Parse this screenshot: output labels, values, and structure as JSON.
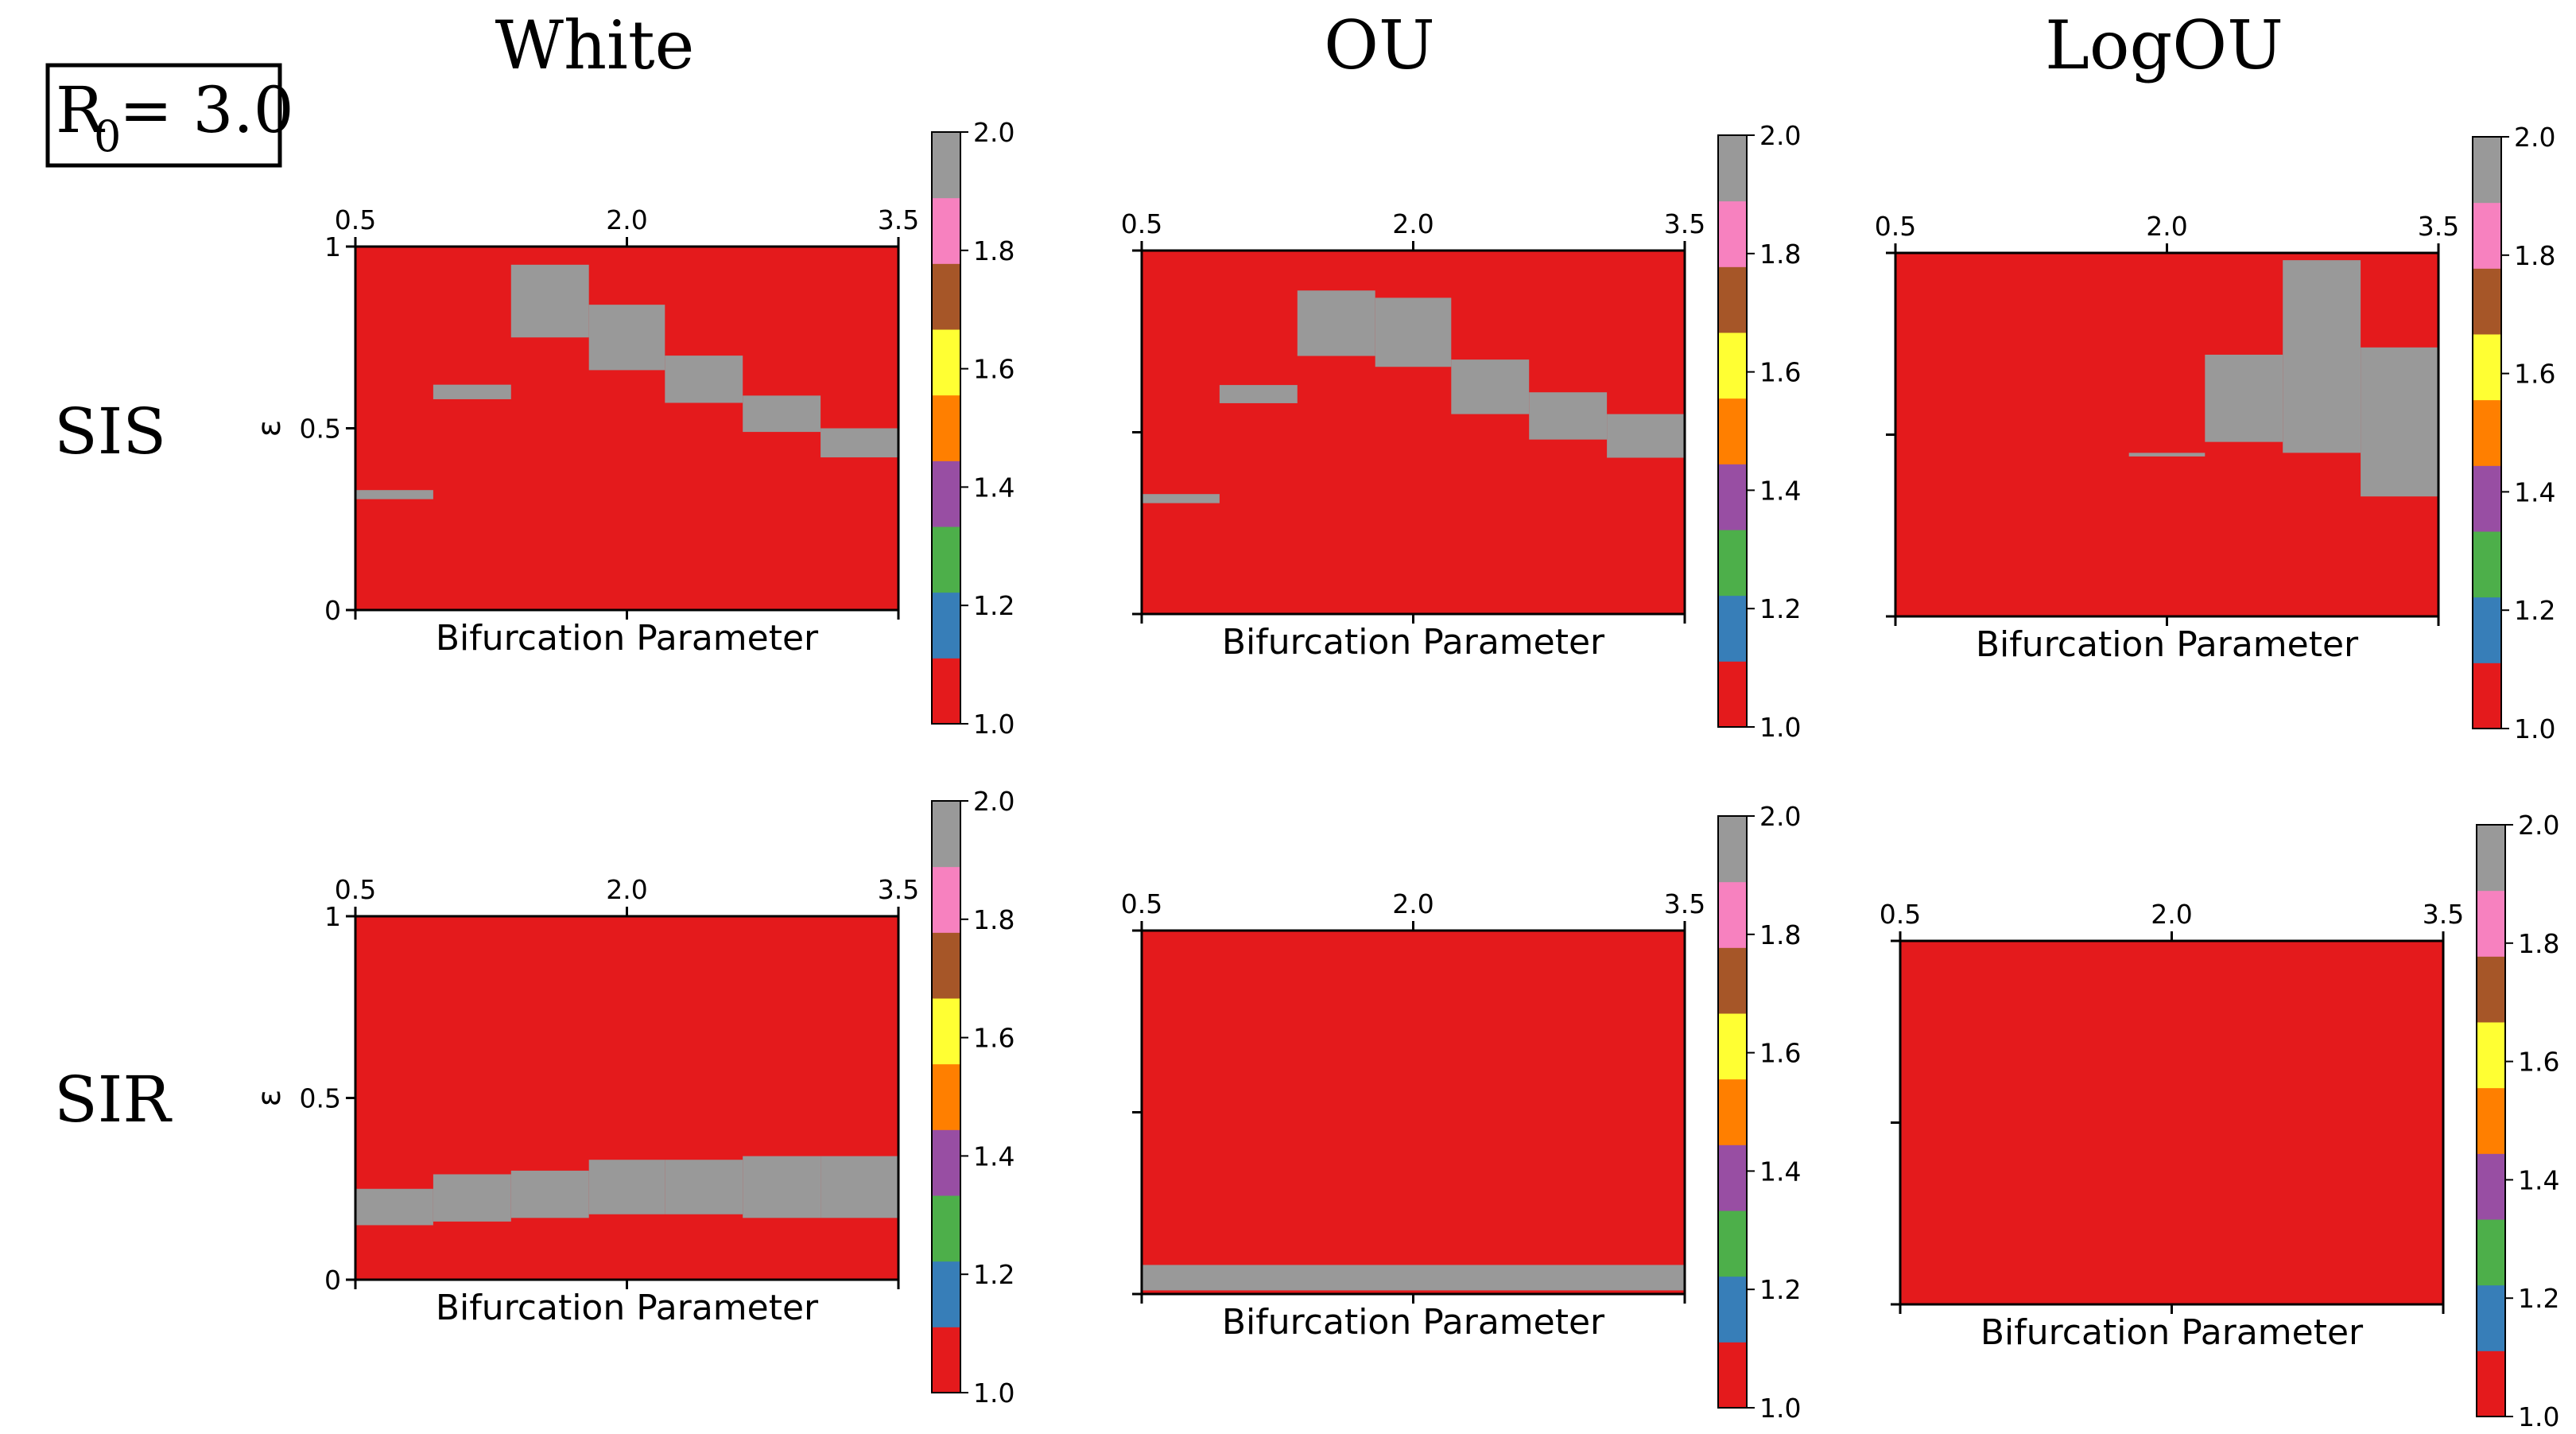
{
  "figure": {
    "badge_main": "R",
    "badge_sub": "0",
    "badge_value": "= 3.0",
    "column_titles": [
      "White",
      "OU",
      "LogOU"
    ],
    "row_labels": [
      "SIS",
      "SIR"
    ]
  },
  "colorbar": {
    "colormap": "Set1",
    "colors": [
      "#e41a1c",
      "#377eb8",
      "#4daf4a",
      "#984ea3",
      "#ff7f00",
      "#ffff33",
      "#a65628",
      "#f781bf",
      "#999999"
    ],
    "range": [
      1.0,
      2.0
    ],
    "tick_labels": [
      "1.0",
      "1.2",
      "1.4",
      "1.6",
      "1.8",
      "2.0"
    ]
  },
  "chart_data": [
    {
      "type": "heatmap",
      "model": "SIS",
      "noise": "White",
      "xlabel": "Bifurcation Parameter",
      "ylabel": "ε",
      "xlim": [
        0.5,
        3.5
      ],
      "ylim": [
        0,
        1
      ],
      "xtick_labels": [
        "0.5",
        "2.0",
        "3.5"
      ],
      "ytick_labels": [
        "0",
        "0.5",
        "1"
      ],
      "background_value": 1.0,
      "regions": [
        {
          "x": [
            0.5,
            0.93
          ],
          "eps": [
            0.305,
            0.33
          ],
          "value": 2.0
        },
        {
          "x": [
            0.93,
            1.36
          ],
          "eps": [
            0.58,
            0.62
          ],
          "value": 2.0
        },
        {
          "x": [
            1.36,
            1.79
          ],
          "eps": [
            0.75,
            0.95
          ],
          "value": 2.0
        },
        {
          "x": [
            1.79,
            2.21
          ],
          "eps": [
            0.66,
            0.84
          ],
          "value": 2.0
        },
        {
          "x": [
            2.21,
            2.64
          ],
          "eps": [
            0.57,
            0.7
          ],
          "value": 2.0
        },
        {
          "x": [
            2.64,
            3.07
          ],
          "eps": [
            0.49,
            0.59
          ],
          "value": 2.0
        },
        {
          "x": [
            3.07,
            3.5
          ],
          "eps": [
            0.42,
            0.5
          ],
          "value": 2.0
        }
      ]
    },
    {
      "type": "heatmap",
      "model": "SIS",
      "noise": "OU",
      "xlabel": "Bifurcation Parameter",
      "ylabel": "",
      "xlim": [
        0.5,
        3.5
      ],
      "ylim": [
        0,
        1
      ],
      "xtick_labels": [
        "0.5",
        "2.0",
        "3.5"
      ],
      "ytick_labels": [],
      "background_value": 1.0,
      "regions": [
        {
          "x": [
            0.5,
            0.93
          ],
          "eps": [
            0.305,
            0.33
          ],
          "value": 2.0
        },
        {
          "x": [
            0.93,
            1.36
          ],
          "eps": [
            0.58,
            0.63
          ],
          "value": 2.0
        },
        {
          "x": [
            1.36,
            1.79
          ],
          "eps": [
            0.71,
            0.89
          ],
          "value": 2.0
        },
        {
          "x": [
            1.79,
            2.21
          ],
          "eps": [
            0.68,
            0.87
          ],
          "value": 2.0
        },
        {
          "x": [
            2.21,
            2.64
          ],
          "eps": [
            0.55,
            0.7
          ],
          "value": 2.0
        },
        {
          "x": [
            2.64,
            3.07
          ],
          "eps": [
            0.48,
            0.61
          ],
          "value": 2.0
        },
        {
          "x": [
            3.07,
            3.5
          ],
          "eps": [
            0.43,
            0.55
          ],
          "value": 2.0
        }
      ]
    },
    {
      "type": "heatmap",
      "model": "SIS",
      "noise": "LogOU",
      "xlabel": "Bifurcation Parameter",
      "ylabel": "",
      "xlim": [
        0.5,
        3.5
      ],
      "ylim": [
        0,
        1
      ],
      "xtick_labels": [
        "0.5",
        "2.0",
        "3.5"
      ],
      "ytick_labels": [],
      "background_value": 1.0,
      "regions": [
        {
          "x": [
            1.79,
            2.21
          ],
          "eps": [
            0.44,
            0.45
          ],
          "value": 2.0
        },
        {
          "x": [
            2.21,
            2.64
          ],
          "eps": [
            0.48,
            0.72
          ],
          "value": 2.0
        },
        {
          "x": [
            2.64,
            3.07
          ],
          "eps": [
            0.45,
            0.98
          ],
          "value": 2.0
        },
        {
          "x": [
            3.07,
            3.5
          ],
          "eps": [
            0.33,
            0.74
          ],
          "value": 2.0
        }
      ]
    },
    {
      "type": "heatmap",
      "model": "SIR",
      "noise": "White",
      "xlabel": "Bifurcation Parameter",
      "ylabel": "ε",
      "xlim": [
        0.5,
        3.5
      ],
      "ylim": [
        0,
        1
      ],
      "xtick_labels": [
        "0.5",
        "2.0",
        "3.5"
      ],
      "ytick_labels": [
        "0",
        "0.5",
        "1"
      ],
      "background_value": 1.0,
      "regions": [
        {
          "x": [
            0.5,
            0.93
          ],
          "eps": [
            0.15,
            0.25
          ],
          "value": 2.0
        },
        {
          "x": [
            0.93,
            1.36
          ],
          "eps": [
            0.16,
            0.29
          ],
          "value": 2.0
        },
        {
          "x": [
            1.36,
            1.79
          ],
          "eps": [
            0.17,
            0.3
          ],
          "value": 2.0
        },
        {
          "x": [
            1.79,
            2.21
          ],
          "eps": [
            0.18,
            0.33
          ],
          "value": 2.0
        },
        {
          "x": [
            2.21,
            2.64
          ],
          "eps": [
            0.18,
            0.33
          ],
          "value": 2.0
        },
        {
          "x": [
            2.64,
            3.07
          ],
          "eps": [
            0.17,
            0.34
          ],
          "value": 2.0
        },
        {
          "x": [
            3.07,
            3.5
          ],
          "eps": [
            0.17,
            0.34
          ],
          "value": 2.0
        }
      ]
    },
    {
      "type": "heatmap",
      "model": "SIR",
      "noise": "OU",
      "xlabel": "Bifurcation Parameter",
      "ylabel": "",
      "xlim": [
        0.5,
        3.5
      ],
      "ylim": [
        0,
        1
      ],
      "xtick_labels": [
        "0.5",
        "2.0",
        "3.5"
      ],
      "ytick_labels": [],
      "background_value": 1.0,
      "regions": [
        {
          "x": [
            0.5,
            3.5
          ],
          "eps": [
            0.01,
            0.08
          ],
          "value": 2.0
        }
      ]
    },
    {
      "type": "heatmap",
      "model": "SIR",
      "noise": "LogOU",
      "xlabel": "Bifurcation Parameter",
      "ylabel": "",
      "xlim": [
        0.5,
        3.5
      ],
      "ylim": [
        0,
        1
      ],
      "xtick_labels": [
        "0.5",
        "2.0",
        "3.5"
      ],
      "ytick_labels": [],
      "background_value": 1.0,
      "regions": []
    }
  ]
}
